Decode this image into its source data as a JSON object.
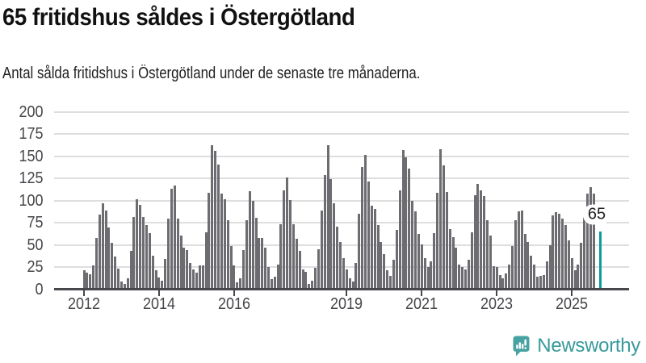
{
  "header": {
    "title": "65 fritidshus såldes i Östergötland",
    "subtitle": "Antal sålda fritidshus i Östergötland under de senaste tre månaderna."
  },
  "chart_data": {
    "type": "bar",
    "title": "65 fritidshus såldes i Östergötland",
    "description": "Antal sålda fritidshus i Östergötland under de senaste tre månaderna, månadsvis",
    "start_year": 2012,
    "frequency": "monthly",
    "ylim": [
      0,
      200
    ],
    "yticks": [
      0,
      25,
      50,
      75,
      100,
      125,
      150,
      175,
      200
    ],
    "xticks": [
      {
        "label": "2012",
        "month_index": 0
      },
      {
        "label": "2014",
        "month_index": 24
      },
      {
        "label": "2016",
        "month_index": 48
      },
      {
        "label": "2019",
        "month_index": 84
      },
      {
        "label": "2021",
        "month_index": 108
      },
      {
        "label": "2023",
        "month_index": 132
      },
      {
        "label": "2025",
        "month_index": 156
      }
    ],
    "values": [
      21,
      19,
      17,
      27,
      58,
      84,
      97,
      89,
      70,
      52,
      37,
      23,
      9,
      6,
      12,
      43,
      82,
      102,
      95,
      82,
      72,
      63,
      38,
      21,
      13,
      10,
      34,
      80,
      113,
      117,
      80,
      61,
      47,
      44,
      30,
      22,
      19,
      27,
      27,
      64,
      109,
      163,
      156,
      141,
      108,
      102,
      78,
      49,
      27,
      8,
      12,
      44,
      78,
      111,
      100,
      81,
      58,
      58,
      47,
      25,
      11,
      14,
      28,
      73,
      112,
      126,
      101,
      73,
      57,
      43,
      22,
      20,
      6,
      10,
      24,
      45,
      89,
      129,
      163,
      124,
      97,
      71,
      53,
      35,
      22,
      12,
      9,
      30,
      85,
      138,
      152,
      122,
      94,
      91,
      72,
      53,
      40,
      21,
      15,
      33,
      67,
      112,
      157,
      149,
      136,
      100,
      88,
      62,
      51,
      35,
      25,
      31,
      63,
      109,
      158,
      140,
      110,
      68,
      59,
      47,
      28,
      25,
      22,
      33,
      64,
      106,
      119,
      112,
      105,
      78,
      61,
      26,
      25,
      16,
      12,
      18,
      28,
      49,
      78,
      88,
      89,
      62,
      53,
      38,
      28,
      14,
      15,
      16,
      31,
      50,
      83,
      87,
      85,
      80,
      72,
      55,
      35,
      21,
      28,
      52,
      82,
      108,
      115,
      108,
      null,
      65
    ],
    "highlight": {
      "value": 65,
      "annotation": "65",
      "color": "#0f9b9d"
    },
    "bar_color": "#6c6c71",
    "grid": true,
    "legend": false
  },
  "footer": {
    "brand": "Newsworthy",
    "brand_color": "#399a9c",
    "logo_color": "#47a2a1"
  }
}
